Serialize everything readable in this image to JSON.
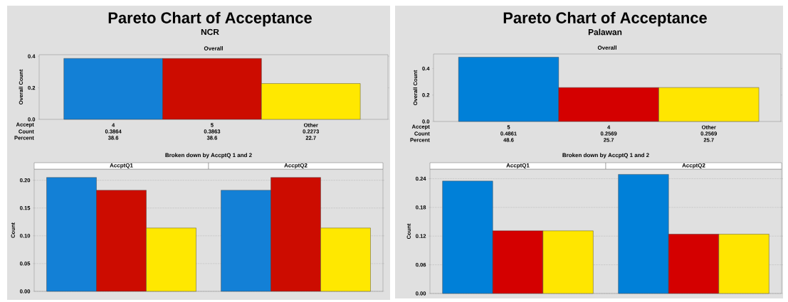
{
  "chart_data": [
    {
      "type": "bar",
      "title": "Pareto Chart of Acceptance",
      "subtitle": "NCR",
      "ylabel": "Overall Count",
      "categories": [
        "4",
        "5",
        "Other"
      ],
      "values": [
        0.3864,
        0.3863,
        0.2273
      ],
      "colors": [
        "#1380d6",
        "#cc0c00",
        "#ffe800"
      ],
      "ylim": [
        0,
        0.41
      ],
      "yticks": [
        {
          "value": 0,
          "label": "0.0"
        },
        {
          "value": 0.2,
          "label": "0.2"
        },
        {
          "value": 0.4,
          "label": "0.4"
        }
      ],
      "data_labels": true,
      "annotations": [
        "Overall",
        "Accept",
        "Count",
        "Percent",
        "38.6",
        "38.6",
        "22.7"
      ]
    },
    {
      "type": "bar",
      "title": "Broken down by AccptQ 1 and 2",
      "ylabel": "Count",
      "categories": [
        "AccptQ1",
        "AccptQ2"
      ],
      "series": [
        {
          "color": "#1380d6",
          "values": [
            0.205,
            0.182
          ]
        },
        {
          "color": "#cc0c00",
          "values": [
            0.182,
            0.205
          ]
        },
        {
          "color": "#ffe800",
          "values": [
            0.114,
            0.114
          ]
        }
      ],
      "ylim": [
        0,
        0.22
      ],
      "yticks": [
        {
          "value": 0,
          "label": "0.00"
        },
        {
          "value": 0.05,
          "label": "0.05"
        },
        {
          "value": 0.1,
          "label": "0.10"
        },
        {
          "value": 0.15,
          "label": "0.15"
        },
        {
          "value": 0.2,
          "label": "0.20"
        }
      ],
      "grid": "y"
    },
    {
      "type": "bar",
      "title": "Pareto Chart of Acceptance",
      "subtitle": "Palawan",
      "ylabel": "Overall Count",
      "categories": [
        "5",
        "4",
        "Other"
      ],
      "values": [
        0.4861,
        0.2569,
        0.2569
      ],
      "colors": [
        "#0080d8",
        "#d40000",
        "#ffe600"
      ],
      "ylim": [
        0,
        0.51
      ],
      "yticks": [
        {
          "value": 0,
          "label": "0.0"
        },
        {
          "value": 0.2,
          "label": "0.2"
        },
        {
          "value": 0.4,
          "label": "0.4"
        }
      ],
      "data_labels": true,
      "annotations": [
        "Overall",
        "Accept",
        "Count",
        "Percent",
        "48.6",
        "25.7",
        "25.7"
      ]
    },
    {
      "type": "bar",
      "title": "Broken down by AccptQ 1 and 2",
      "ylabel": "Count",
      "categories": [
        "AccptQ1",
        "AccptQ2"
      ],
      "series": [
        {
          "color": "#0080d8",
          "values": [
            0.235,
            0.249
          ]
        },
        {
          "color": "#d40000",
          "values": [
            0.131,
            0.124
          ]
        },
        {
          "color": "#ffe600",
          "values": [
            0.131,
            0.124
          ]
        }
      ],
      "ylim": [
        0,
        0.26
      ],
      "yticks": [
        {
          "value": 0,
          "label": "0.00"
        },
        {
          "value": 0.06,
          "label": "0.06"
        },
        {
          "value": 0.12,
          "label": "0.12"
        },
        {
          "value": 0.18,
          "label": "0.18"
        },
        {
          "value": 0.24,
          "label": "0.24"
        }
      ],
      "grid": "y"
    }
  ]
}
